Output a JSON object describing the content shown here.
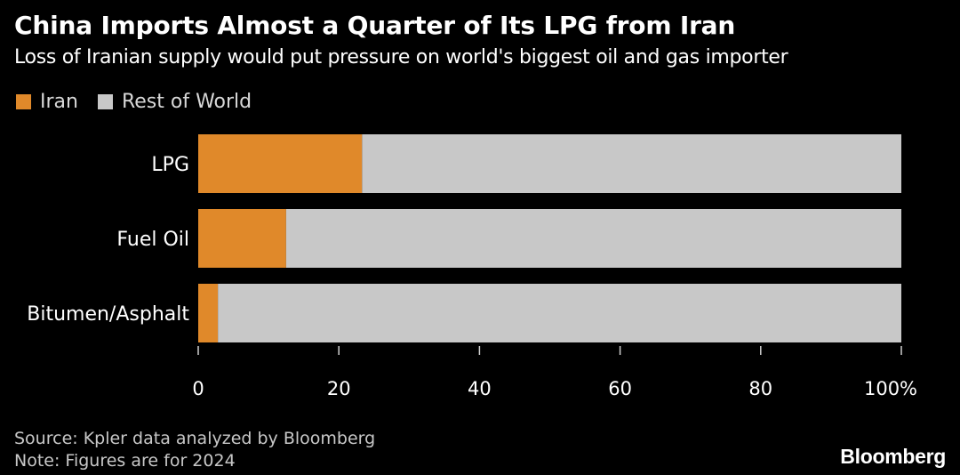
{
  "colors": {
    "iran": "#e0892a",
    "rest_of_world": "#c8c8c8",
    "background": "#000000",
    "text": "#ffffff",
    "axis": "#cfcfcf"
  },
  "chart_data": {
    "type": "bar",
    "orientation": "horizontal",
    "stacked": true,
    "title": "China Imports Almost a Quarter of Its LPG from Iran",
    "subtitle": "Loss of Iranian supply would put pressure on world's biggest oil and gas importer",
    "categories": [
      "LPG",
      "Fuel Oil",
      "Bitumen/Asphalt"
    ],
    "series": [
      {
        "name": "Iran",
        "values": [
          23.3,
          12.5,
          2.8
        ]
      },
      {
        "name": "Rest of World",
        "values": [
          76.7,
          87.5,
          97.2
        ]
      }
    ],
    "xlim": [
      0,
      100
    ],
    "xticks": [
      0,
      20,
      40,
      60,
      80,
      100
    ],
    "xtick_labels": [
      "0",
      "20",
      "40",
      "60",
      "80",
      "100%"
    ],
    "grid": false,
    "legend_position": "top-left",
    "source": "Source: Kpler data analyzed by Bloomberg",
    "note": "Note: Figures are for 2024"
  },
  "brand": "Bloomberg"
}
